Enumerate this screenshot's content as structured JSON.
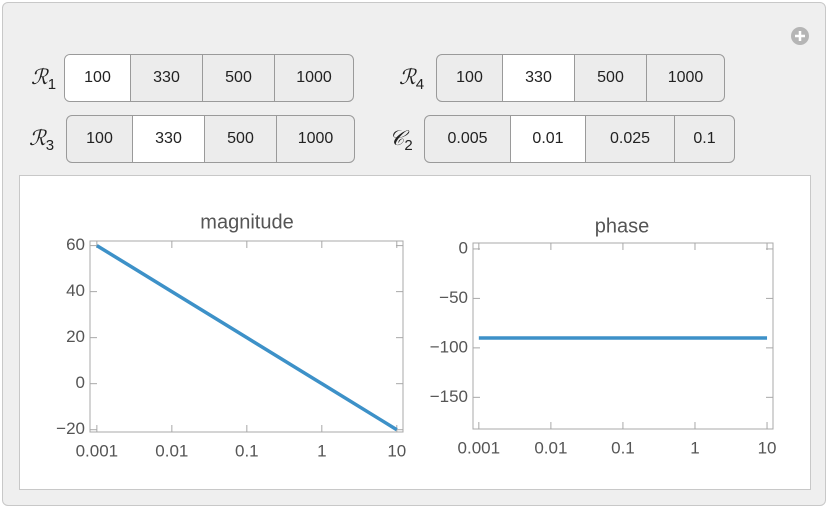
{
  "controls": [
    {
      "label": "ℛ",
      "subscript": "1",
      "options": [
        "100",
        "330",
        "500",
        "1000"
      ],
      "selected": 0
    },
    {
      "label": "ℛ",
      "subscript": "4",
      "options": [
        "100",
        "330",
        "500",
        "1000"
      ],
      "selected": 1
    },
    {
      "label": "ℛ",
      "subscript": "3",
      "options": [
        "100",
        "330",
        "500",
        "1000"
      ],
      "selected": 1
    },
    {
      "label": "𝒞",
      "subscript": "2",
      "options": [
        "0.005",
        "0.01",
        "0.025",
        "0.1"
      ],
      "selected": 1
    }
  ],
  "chart_data": [
    {
      "type": "line",
      "title": "magnitude",
      "xscale": "log",
      "xlim": [
        0.00081,
        12.1
      ],
      "xticks": [
        0.001,
        0.01,
        0.1,
        1,
        10
      ],
      "ylim": [
        -21,
        62
      ],
      "yticks": [
        {
          "value": -20,
          "label": "−20"
        },
        0,
        20,
        40,
        60
      ],
      "series": [
        {
          "color": "#3d91c8",
          "x": [
            0.001,
            0.01,
            0.1,
            1,
            10
          ],
          "values": [
            60,
            40,
            20,
            0,
            -20
          ]
        }
      ]
    },
    {
      "type": "line",
      "title": "phase",
      "xscale": "log",
      "xlim": [
        0.00083,
        12.1
      ],
      "xticks": [
        0.001,
        0.01,
        0.1,
        1,
        10
      ],
      "ylim": [
        -182,
        6
      ],
      "yticks": [
        {
          "value": -150,
          "label": "−150"
        },
        {
          "value": -100,
          "label": "−100"
        },
        {
          "value": -50,
          "label": "−50"
        },
        0
      ],
      "series": [
        {
          "color": "#3d91c8",
          "x": [
            0.001,
            10
          ],
          "values": [
            -90,
            -90
          ]
        }
      ]
    }
  ]
}
